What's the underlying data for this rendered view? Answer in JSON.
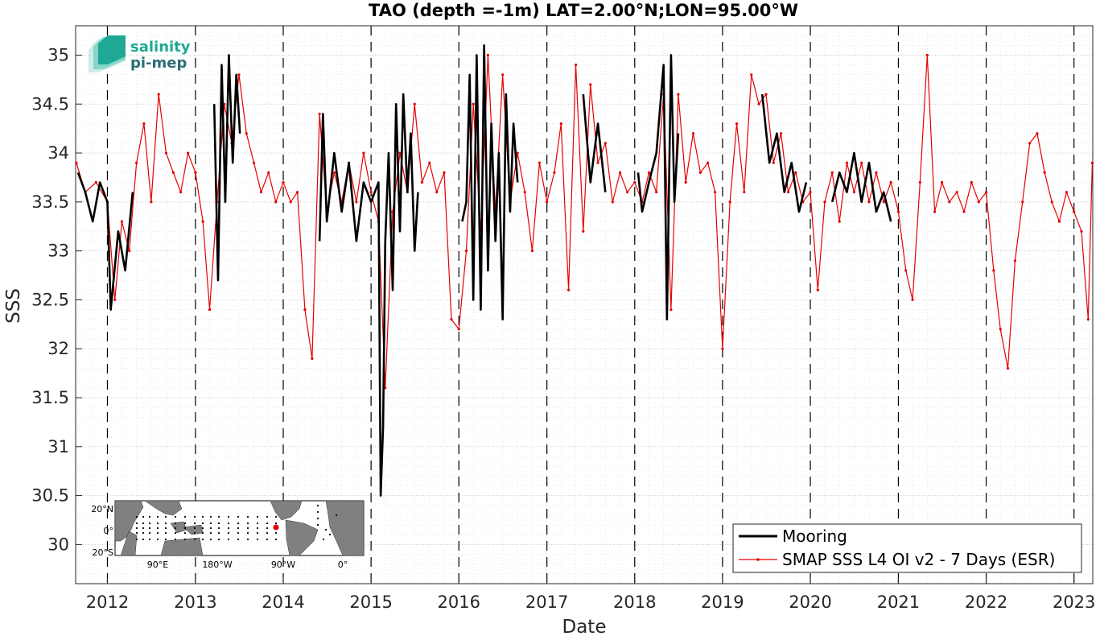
{
  "colors": {
    "mooring": "#000000",
    "smap": "#e60000",
    "grid": "#c8c8c8",
    "year_line": "#000000",
    "logo_teal": "#1fa896",
    "logo_dark": "#2a6e78"
  },
  "logo": {
    "line1": "salinity",
    "line2": "pi-mep"
  },
  "inset_map": {
    "lat_labels": [
      "20°N",
      "0°",
      "20°S"
    ],
    "lon_labels": [
      "90°E",
      "180°W",
      "90°W",
      "0°"
    ]
  },
  "chart_data": {
    "type": "line",
    "title": "TAO (depth =-1m) LAT=2.00°N;LON=95.00°W",
    "xlabel": "Date",
    "ylabel": "SSS",
    "xlim": [
      "2011-08-22",
      "2023-03-20"
    ],
    "ylim": [
      29.6,
      35.3
    ],
    "yticks": [
      30,
      30.5,
      31,
      31.5,
      32,
      32.5,
      33,
      33.5,
      34,
      34.5,
      35
    ],
    "xticks": [
      "2012",
      "2013",
      "2014",
      "2015",
      "2016",
      "2017",
      "2018",
      "2019",
      "2020",
      "2021",
      "2022",
      "2023"
    ],
    "grid": "minor dotted",
    "legend_position": "bottom-right",
    "series": [
      {
        "name": "Mooring",
        "style": "thick line",
        "x": [
          "2011-09-01",
          "2011-10-01",
          "2011-11-01",
          "2011-12-01",
          "2012-01-01",
          "2012-01-15",
          "2012-02-15",
          "2012-03-15",
          "2012-04-15",
          "2013-03-20",
          "2013-04-05",
          "2013-04-20",
          "2013-05-05",
          "2013-05-20",
          "2013-06-05",
          "2013-06-20",
          "2013-07-05",
          "2014-06-01",
          "2014-06-15",
          "2014-07-01",
          "2014-08-01",
          "2014-09-01",
          "2014-10-01",
          "2014-11-01",
          "2014-12-01",
          "2015-01-01",
          "2015-02-01",
          "2015-02-10",
          "2015-02-20",
          "2015-03-01",
          "2015-03-15",
          "2015-04-01",
          "2015-04-15",
          "2015-05-01",
          "2015-05-15",
          "2015-06-01",
          "2015-06-15",
          "2015-07-01",
          "2015-07-15",
          "2016-01-15",
          "2016-02-01",
          "2016-02-15",
          "2016-03-01",
          "2016-03-15",
          "2016-04-01",
          "2016-04-15",
          "2016-05-01",
          "2016-05-15",
          "2016-06-01",
          "2016-06-15",
          "2016-07-01",
          "2016-07-15",
          "2016-08-01",
          "2016-08-15",
          "2016-09-01",
          "2017-06-01",
          "2017-07-01",
          "2017-08-01",
          "2017-09-01",
          "2018-01-15",
          "2018-02-01",
          "2018-03-01",
          "2018-04-01",
          "2018-05-01",
          "2018-05-15",
          "2018-06-01",
          "2018-06-15",
          "2018-07-01",
          "2019-06-15",
          "2019-07-15",
          "2019-08-15",
          "2019-09-15",
          "2019-10-15",
          "2019-11-15",
          "2019-12-15",
          "2020-04-01",
          "2020-05-01",
          "2020-06-01",
          "2020-07-01",
          "2020-08-01",
          "2020-09-01",
          "2020-10-01",
          "2020-11-01",
          "2020-12-01"
        ],
        "y": [
          33.8,
          33.6,
          33.3,
          33.7,
          33.5,
          32.4,
          33.2,
          32.8,
          33.6,
          34.5,
          32.7,
          34.9,
          33.5,
          35.0,
          33.9,
          34.8,
          34.2,
          33.1,
          34.4,
          33.3,
          34.0,
          33.4,
          33.9,
          33.1,
          33.7,
          33.5,
          33.7,
          30.5,
          31.2,
          33.1,
          34.0,
          32.6,
          34.5,
          33.2,
          34.6,
          33.6,
          34.2,
          33.0,
          33.6,
          33.3,
          33.5,
          34.8,
          32.5,
          35.0,
          32.4,
          35.1,
          32.8,
          34.3,
          33.1,
          34.0,
          32.3,
          34.6,
          33.4,
          34.3,
          33.7,
          34.6,
          33.7,
          34.3,
          33.6,
          33.8,
          33.4,
          33.7,
          34.0,
          34.9,
          32.3,
          35.0,
          33.5,
          34.2,
          34.6,
          33.9,
          34.2,
          33.6,
          33.9,
          33.4,
          33.7,
          33.5,
          33.8,
          33.6,
          34.0,
          33.5,
          33.9,
          33.4,
          33.6,
          33.3
        ]
      },
      {
        "name": "SMAP SSS L4 OI v2 - 7 Days (ESR)",
        "style": "thin line with dot markers",
        "x": [
          "2011-08-25",
          "2011-10-01",
          "2011-11-15",
          "2012-01-01",
          "2012-02-01",
          "2012-03-01",
          "2012-04-01",
          "2012-05-01",
          "2012-06-01",
          "2012-07-01",
          "2012-08-01",
          "2012-09-01",
          "2012-10-01",
          "2012-11-01",
          "2012-12-01",
          "2013-01-01",
          "2013-02-01",
          "2013-03-01",
          "2013-04-01",
          "2013-05-01",
          "2013-06-01",
          "2013-07-01",
          "2013-08-01",
          "2013-09-01",
          "2013-10-01",
          "2013-11-01",
          "2013-12-01",
          "2014-01-01",
          "2014-02-01",
          "2014-03-01",
          "2014-04-01",
          "2014-05-01",
          "2014-06-01",
          "2014-07-01",
          "2014-08-01",
          "2014-09-01",
          "2014-10-01",
          "2014-11-01",
          "2014-12-01",
          "2015-01-01",
          "2015-02-01",
          "2015-03-01",
          "2015-04-01",
          "2015-05-01",
          "2015-06-01",
          "2015-07-01",
          "2015-08-01",
          "2015-09-01",
          "2015-10-01",
          "2015-11-01",
          "2015-12-01",
          "2016-01-01",
          "2016-02-01",
          "2016-03-01",
          "2016-04-01",
          "2016-05-01",
          "2016-06-01",
          "2016-07-01",
          "2016-08-01",
          "2016-09-01",
          "2016-10-01",
          "2016-11-01",
          "2016-12-01",
          "2017-01-01",
          "2017-02-01",
          "2017-03-01",
          "2017-04-01",
          "2017-05-01",
          "2017-06-01",
          "2017-07-01",
          "2017-08-01",
          "2017-09-01",
          "2017-10-01",
          "2017-11-01",
          "2017-12-01",
          "2018-01-01",
          "2018-02-01",
          "2018-03-01",
          "2018-04-01",
          "2018-05-01",
          "2018-06-01",
          "2018-07-01",
          "2018-08-01",
          "2018-09-01",
          "2018-10-01",
          "2018-11-01",
          "2018-12-01",
          "2019-01-01",
          "2019-02-01",
          "2019-03-01",
          "2019-04-01",
          "2019-05-01",
          "2019-06-01",
          "2019-07-01",
          "2019-08-01",
          "2019-09-01",
          "2019-10-01",
          "2019-11-01",
          "2019-12-01",
          "2020-01-01",
          "2020-02-01",
          "2020-03-01",
          "2020-04-01",
          "2020-05-01",
          "2020-06-01",
          "2020-07-01",
          "2020-08-01",
          "2020-09-01",
          "2020-10-01",
          "2020-11-01",
          "2020-12-01",
          "2021-01-01",
          "2021-02-01",
          "2021-03-01",
          "2021-04-01",
          "2021-05-01",
          "2021-06-01",
          "2021-07-01",
          "2021-08-01",
          "2021-09-01",
          "2021-10-01",
          "2021-11-01",
          "2021-12-01",
          "2022-01-01",
          "2022-02-01",
          "2022-03-01",
          "2022-04-01",
          "2022-05-01",
          "2022-06-01",
          "2022-07-01",
          "2022-08-01",
          "2022-09-01",
          "2022-10-01",
          "2022-11-01",
          "2022-12-01",
          "2023-01-01",
          "2023-02-01",
          "2023-03-01",
          "2023-03-18"
        ],
        "y": [
          33.9,
          33.6,
          33.7,
          33.5,
          32.5,
          33.3,
          33.0,
          33.9,
          34.3,
          33.5,
          34.6,
          34.0,
          33.8,
          33.6,
          34.0,
          33.8,
          33.3,
          32.4,
          33.5,
          34.5,
          34.1,
          34.8,
          34.2,
          33.9,
          33.6,
          33.8,
          33.5,
          33.7,
          33.5,
          33.6,
          32.4,
          31.9,
          34.4,
          33.4,
          33.8,
          33.5,
          33.9,
          33.5,
          34.0,
          33.6,
          33.3,
          31.6,
          33.4,
          34.0,
          33.6,
          34.5,
          33.7,
          33.9,
          33.6,
          33.8,
          32.3,
          32.2,
          33.0,
          34.5,
          33.2,
          35.0,
          33.4,
          34.8,
          33.5,
          34.0,
          33.6,
          33.0,
          33.9,
          33.5,
          33.8,
          34.3,
          32.6,
          34.9,
          33.2,
          34.7,
          33.9,
          34.1,
          33.5,
          33.8,
          33.6,
          33.7,
          33.5,
          33.8,
          33.6,
          34.6,
          32.4,
          34.6,
          33.7,
          34.2,
          33.8,
          33.9,
          33.6,
          32.0,
          33.5,
          34.3,
          33.6,
          34.8,
          34.5,
          34.6,
          33.9,
          34.2,
          33.6,
          33.8,
          33.5,
          33.6,
          32.6,
          33.5,
          33.8,
          33.3,
          33.9,
          33.6,
          33.9,
          33.5,
          33.8,
          33.5,
          33.7,
          33.4,
          32.8,
          32.5,
          33.7,
          35.0,
          33.4,
          33.7,
          33.5,
          33.6,
          33.4,
          33.7,
          33.5,
          33.6,
          32.8,
          32.2,
          31.8,
          32.9,
          33.5,
          34.1,
          34.2,
          33.8,
          33.5,
          33.3,
          33.6,
          33.4,
          33.2,
          32.3,
          33.9
        ]
      }
    ]
  }
}
